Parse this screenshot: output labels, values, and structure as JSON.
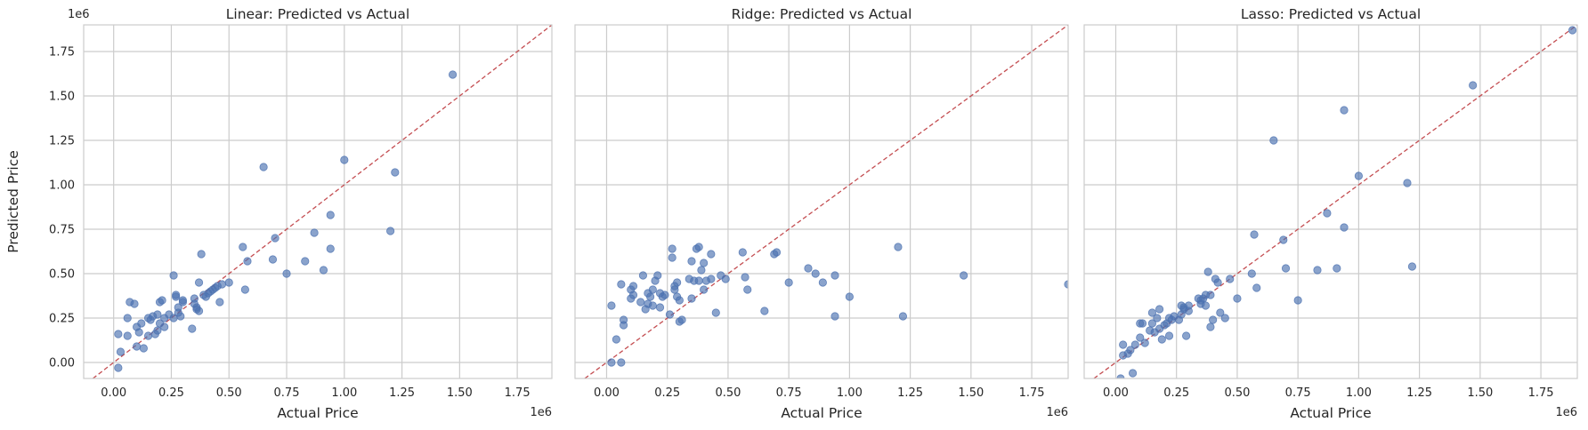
{
  "chart_data": [
    {
      "type": "scatter",
      "title": "Linear: Predicted vs Actual",
      "xlabel": "Actual Price",
      "ylabel": "Predicted Price",
      "x_offset_label": "1e6",
      "y_offset_label": "1e6",
      "xlim": [
        -0.13,
        1.9
      ],
      "ylim": [
        -0.09,
        1.9
      ],
      "xticks": [
        "0.00",
        "0.25",
        "0.50",
        "0.75",
        "1.00",
        "1.25",
        "1.50",
        "1.75"
      ],
      "yticks": [
        "0.00",
        "0.25",
        "0.50",
        "0.75",
        "1.00",
        "1.25",
        "1.50",
        "1.75"
      ],
      "grid": true,
      "reference_line": "y=x",
      "points": [
        [
          0.02,
          -0.03
        ],
        [
          0.02,
          0.16
        ],
        [
          0.03,
          0.06
        ],
        [
          0.06,
          0.15
        ],
        [
          0.06,
          0.25
        ],
        [
          0.07,
          0.34
        ],
        [
          0.09,
          0.33
        ],
        [
          0.1,
          0.2
        ],
        [
          0.1,
          0.09
        ],
        [
          0.11,
          0.17
        ],
        [
          0.12,
          0.22
        ],
        [
          0.13,
          0.08
        ],
        [
          0.15,
          0.25
        ],
        [
          0.15,
          0.15
        ],
        [
          0.16,
          0.24
        ],
        [
          0.17,
          0.26
        ],
        [
          0.18,
          0.16
        ],
        [
          0.19,
          0.27
        ],
        [
          0.19,
          0.18
        ],
        [
          0.2,
          0.22
        ],
        [
          0.2,
          0.34
        ],
        [
          0.21,
          0.35
        ],
        [
          0.22,
          0.25
        ],
        [
          0.22,
          0.2
        ],
        [
          0.24,
          0.27
        ],
        [
          0.26,
          0.49
        ],
        [
          0.26,
          0.25
        ],
        [
          0.27,
          0.37
        ],
        [
          0.27,
          0.38
        ],
        [
          0.28,
          0.31
        ],
        [
          0.28,
          0.28
        ],
        [
          0.29,
          0.26
        ],
        [
          0.3,
          0.34
        ],
        [
          0.3,
          0.35
        ],
        [
          0.34,
          0.19
        ],
        [
          0.35,
          0.33
        ],
        [
          0.35,
          0.36
        ],
        [
          0.36,
          0.3
        ],
        [
          0.36,
          0.31
        ],
        [
          0.37,
          0.29
        ],
        [
          0.37,
          0.45
        ],
        [
          0.38,
          0.61
        ],
        [
          0.39,
          0.38
        ],
        [
          0.4,
          0.37
        ],
        [
          0.41,
          0.39
        ],
        [
          0.42,
          0.4
        ],
        [
          0.43,
          0.41
        ],
        [
          0.44,
          0.42
        ],
        [
          0.45,
          0.43
        ],
        [
          0.46,
          0.34
        ],
        [
          0.47,
          0.44
        ],
        [
          0.5,
          0.45
        ],
        [
          0.56,
          0.65
        ],
        [
          0.57,
          0.41
        ],
        [
          0.58,
          0.57
        ],
        [
          0.65,
          1.1
        ],
        [
          0.69,
          0.58
        ],
        [
          0.7,
          0.7
        ],
        [
          0.75,
          0.5
        ],
        [
          0.83,
          0.57
        ],
        [
          0.87,
          0.73
        ],
        [
          0.91,
          0.52
        ],
        [
          0.94,
          0.83
        ],
        [
          0.94,
          0.64
        ],
        [
          1.0,
          1.14
        ],
        [
          1.2,
          0.74
        ],
        [
          1.22,
          1.07
        ],
        [
          1.47,
          1.62
        ]
      ]
    },
    {
      "type": "scatter",
      "title": "Ridge: Predicted vs Actual",
      "xlabel": "Actual Price",
      "ylabel": "",
      "x_offset_label": "1e6",
      "y_offset_label": "",
      "xlim": [
        -0.13,
        1.9
      ],
      "ylim": [
        -0.09,
        1.9
      ],
      "xticks": [
        "0.00",
        "0.25",
        "0.50",
        "0.75",
        "1.00",
        "1.25",
        "1.50",
        "1.75"
      ],
      "yticks": [],
      "grid": true,
      "reference_line": "y=x",
      "points": [
        [
          0.02,
          0.0
        ],
        [
          0.02,
          0.32
        ],
        [
          0.04,
          0.13
        ],
        [
          0.06,
          0.44
        ],
        [
          0.06,
          0.0
        ],
        [
          0.07,
          0.21
        ],
        [
          0.07,
          0.24
        ],
        [
          0.1,
          0.36
        ],
        [
          0.1,
          0.41
        ],
        [
          0.11,
          0.38
        ],
        [
          0.11,
          0.43
        ],
        [
          0.14,
          0.34
        ],
        [
          0.15,
          0.49
        ],
        [
          0.16,
          0.3
        ],
        [
          0.17,
          0.33
        ],
        [
          0.17,
          0.39
        ],
        [
          0.18,
          0.37
        ],
        [
          0.19,
          0.41
        ],
        [
          0.19,
          0.32
        ],
        [
          0.2,
          0.46
        ],
        [
          0.21,
          0.49
        ],
        [
          0.22,
          0.31
        ],
        [
          0.22,
          0.39
        ],
        [
          0.23,
          0.37
        ],
        [
          0.24,
          0.38
        ],
        [
          0.26,
          0.27
        ],
        [
          0.27,
          0.59
        ],
        [
          0.27,
          0.64
        ],
        [
          0.28,
          0.43
        ],
        [
          0.28,
          0.41
        ],
        [
          0.29,
          0.37
        ],
        [
          0.29,
          0.45
        ],
        [
          0.3,
          0.35
        ],
        [
          0.3,
          0.23
        ],
        [
          0.31,
          0.24
        ],
        [
          0.34,
          0.47
        ],
        [
          0.35,
          0.36
        ],
        [
          0.35,
          0.57
        ],
        [
          0.36,
          0.46
        ],
        [
          0.37,
          0.64
        ],
        [
          0.38,
          0.65
        ],
        [
          0.38,
          0.46
        ],
        [
          0.39,
          0.52
        ],
        [
          0.4,
          0.56
        ],
        [
          0.4,
          0.41
        ],
        [
          0.41,
          0.46
        ],
        [
          0.43,
          0.47
        ],
        [
          0.43,
          0.61
        ],
        [
          0.45,
          0.28
        ],
        [
          0.47,
          0.49
        ],
        [
          0.49,
          0.47
        ],
        [
          0.56,
          0.62
        ],
        [
          0.57,
          0.48
        ],
        [
          0.58,
          0.41
        ],
        [
          0.65,
          0.29
        ],
        [
          0.69,
          0.61
        ],
        [
          0.7,
          0.62
        ],
        [
          0.75,
          0.45
        ],
        [
          0.83,
          0.53
        ],
        [
          0.86,
          0.5
        ],
        [
          0.89,
          0.45
        ],
        [
          0.94,
          0.26
        ],
        [
          0.94,
          0.49
        ],
        [
          1.0,
          0.37
        ],
        [
          1.2,
          0.65
        ],
        [
          1.22,
          0.26
        ],
        [
          1.47,
          0.49
        ],
        [
          1.9,
          0.44
        ]
      ]
    },
    {
      "type": "scatter",
      "title": "Lasso: Predicted vs Actual",
      "xlabel": "Actual Price",
      "ylabel": "",
      "x_offset_label": "1e6",
      "y_offset_label": "",
      "xlim": [
        -0.13,
        1.9
      ],
      "ylim": [
        -0.09,
        1.9
      ],
      "xticks": [
        "0.00",
        "0.25",
        "0.50",
        "0.75",
        "1.00",
        "1.25",
        "1.50",
        "1.75"
      ],
      "yticks": [],
      "grid": true,
      "reference_line": "y=x",
      "points": [
        [
          0.02,
          -0.09
        ],
        [
          0.03,
          0.1
        ],
        [
          0.03,
          0.04
        ],
        [
          0.05,
          0.05
        ],
        [
          0.06,
          0.07
        ],
        [
          0.07,
          -0.06
        ],
        [
          0.08,
          0.1
        ],
        [
          0.1,
          0.22
        ],
        [
          0.1,
          0.14
        ],
        [
          0.11,
          0.22
        ],
        [
          0.12,
          0.11
        ],
        [
          0.14,
          0.18
        ],
        [
          0.15,
          0.28
        ],
        [
          0.15,
          0.22
        ],
        [
          0.16,
          0.17
        ],
        [
          0.17,
          0.25
        ],
        [
          0.18,
          0.3
        ],
        [
          0.18,
          0.19
        ],
        [
          0.19,
          0.13
        ],
        [
          0.2,
          0.21
        ],
        [
          0.21,
          0.22
        ],
        [
          0.22,
          0.25
        ],
        [
          0.22,
          0.15
        ],
        [
          0.23,
          0.24
        ],
        [
          0.24,
          0.26
        ],
        [
          0.26,
          0.24
        ],
        [
          0.27,
          0.27
        ],
        [
          0.27,
          0.32
        ],
        [
          0.28,
          0.31
        ],
        [
          0.28,
          0.3
        ],
        [
          0.29,
          0.15
        ],
        [
          0.3,
          0.32
        ],
        [
          0.3,
          0.29
        ],
        [
          0.34,
          0.36
        ],
        [
          0.35,
          0.33
        ],
        [
          0.35,
          0.35
        ],
        [
          0.36,
          0.36
        ],
        [
          0.37,
          0.32
        ],
        [
          0.37,
          0.38
        ],
        [
          0.38,
          0.51
        ],
        [
          0.39,
          0.38
        ],
        [
          0.39,
          0.2
        ],
        [
          0.4,
          0.24
        ],
        [
          0.41,
          0.47
        ],
        [
          0.42,
          0.45
        ],
        [
          0.43,
          0.28
        ],
        [
          0.45,
          0.25
        ],
        [
          0.47,
          0.47
        ],
        [
          0.5,
          0.36
        ],
        [
          0.56,
          0.5
        ],
        [
          0.57,
          0.72
        ],
        [
          0.58,
          0.42
        ],
        [
          0.65,
          1.25
        ],
        [
          0.69,
          0.69
        ],
        [
          0.7,
          0.53
        ],
        [
          0.75,
          0.35
        ],
        [
          0.83,
          0.52
        ],
        [
          0.87,
          0.84
        ],
        [
          0.91,
          0.53
        ],
        [
          0.94,
          1.42
        ],
        [
          0.94,
          0.76
        ],
        [
          1.0,
          1.05
        ],
        [
          1.2,
          1.01
        ],
        [
          1.22,
          0.54
        ],
        [
          1.47,
          1.56
        ],
        [
          1.88,
          1.87
        ]
      ]
    }
  ],
  "colors": {
    "points": "#4c72b0",
    "reference_line": "#c44e52",
    "grid": "#cccccc",
    "spine": "#cccccc"
  }
}
